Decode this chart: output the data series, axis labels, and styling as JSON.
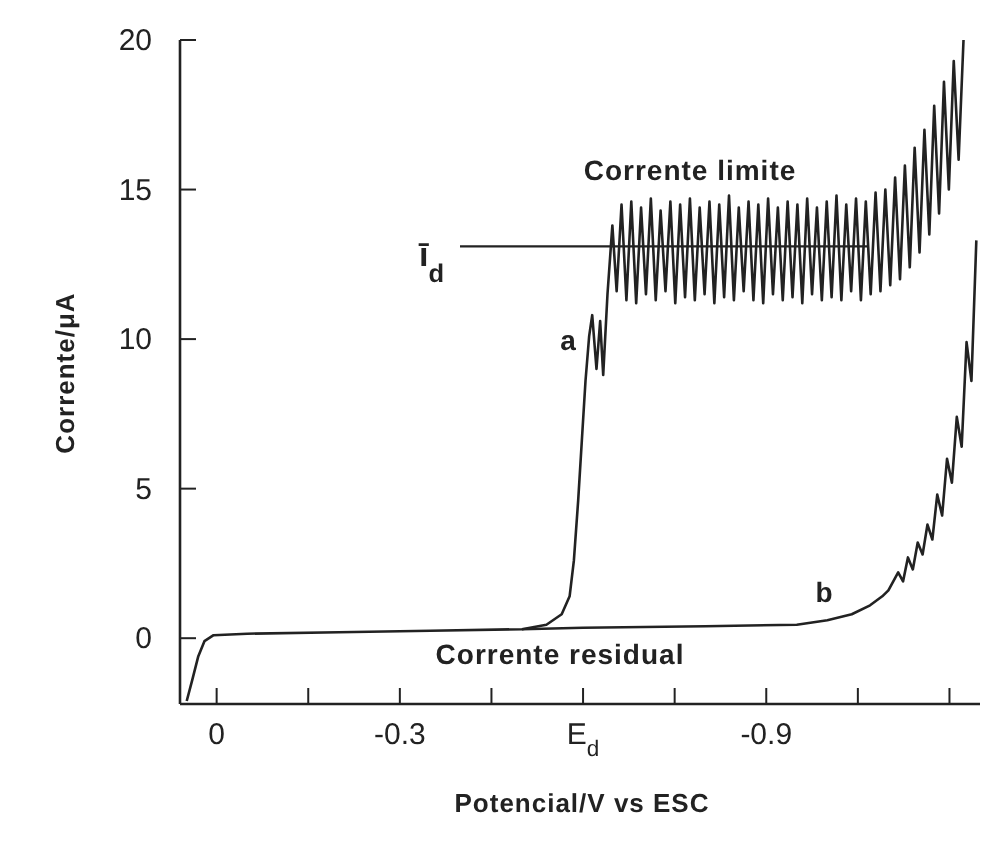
{
  "chart_data": {
    "type": "line",
    "xlabel": "Potencial/V vs ESC",
    "ylabel": "Corrente/μA",
    "xlim": [
      0.06,
      -1.25
    ],
    "ylim": [
      -2.2,
      20
    ],
    "xticks": [
      0,
      {
        "value": -0.15,
        "label": null
      },
      -0.3,
      {
        "value": -0.45,
        "label": null
      },
      {
        "value": -0.6,
        "label": "E$_{d}$"
      },
      {
        "value": -0.75,
        "label": null
      },
      -0.9,
      {
        "value": -1.05,
        "label": null
      },
      {
        "value": -1.2,
        "label": null
      }
    ],
    "yticks": [
      0,
      5,
      10,
      15,
      20
    ],
    "grid": false,
    "legend": false,
    "marker": "none",
    "line_style": "solid",
    "series": [
      {
        "name": "a",
        "color": "#222222",
        "x": [
          0.049,
          0.04,
          0.03,
          0.02,
          0.005,
          -0.05,
          -0.2,
          -0.35,
          -0.5,
          -0.54,
          -0.565,
          -0.578,
          -0.585,
          -0.592,
          -0.598,
          -0.604,
          -0.61,
          -0.615,
          -0.622,
          -0.628,
          -0.633,
          -0.64,
          -0.648,
          -0.655,
          -0.663,
          -0.671,
          -0.679,
          -0.687,
          -0.695,
          -0.703,
          -0.711,
          -0.719,
          -0.727,
          -0.735,
          -0.743,
          -0.751,
          -0.759,
          -0.767,
          -0.775,
          -0.783,
          -0.791,
          -0.799,
          -0.807,
          -0.815,
          -0.823,
          -0.831,
          -0.839,
          -0.847,
          -0.855,
          -0.863,
          -0.871,
          -0.879,
          -0.887,
          -0.895,
          -0.903,
          -0.911,
          -0.919,
          -0.927,
          -0.935,
          -0.943,
          -0.951,
          -0.959,
          -0.967,
          -0.975,
          -0.983,
          -0.991,
          -0.999,
          -1.007,
          -1.015,
          -1.023,
          -1.031,
          -1.039,
          -1.047,
          -1.055,
          -1.063,
          -1.071,
          -1.079,
          -1.087,
          -1.095,
          -1.103,
          -1.111,
          -1.119,
          -1.127,
          -1.135,
          -1.143,
          -1.151,
          -1.159,
          -1.167,
          -1.175,
          -1.183,
          -1.191,
          -1.199,
          -1.207,
          -1.215,
          -1.223
        ],
        "values": [
          -2.1,
          -1.4,
          -0.6,
          -0.1,
          0.1,
          0.15,
          0.2,
          0.25,
          0.3,
          0.45,
          0.8,
          1.4,
          2.6,
          4.6,
          6.6,
          8.6,
          10.1,
          10.8,
          9.0,
          10.6,
          8.8,
          11.5,
          13.8,
          11.6,
          14.5,
          11.3,
          14.6,
          11.2,
          14.4,
          11.5,
          14.7,
          11.3,
          14.3,
          11.6,
          14.6,
          11.2,
          14.5,
          11.4,
          14.7,
          11.3,
          14.4,
          11.5,
          14.6,
          11.2,
          14.5,
          11.4,
          14.8,
          11.3,
          14.4,
          11.6,
          14.6,
          11.3,
          14.5,
          11.2,
          14.7,
          11.5,
          14.4,
          11.3,
          14.6,
          11.4,
          14.5,
          11.2,
          14.7,
          11.5,
          14.4,
          11.3,
          14.6,
          11.4,
          14.8,
          11.3,
          14.5,
          11.6,
          14.7,
          11.3,
          14.6,
          11.5,
          14.9,
          11.6,
          15.0,
          11.8,
          15.4,
          12.0,
          15.8,
          12.4,
          16.4,
          12.9,
          17.0,
          13.5,
          17.8,
          14.2,
          18.6,
          15.0,
          19.3,
          16.0,
          20.0
        ]
      },
      {
        "name": "b",
        "color": "#222222",
        "x": [
          -0.5,
          -0.6,
          -0.8,
          -0.95,
          -1.0,
          -1.04,
          -1.07,
          -1.09,
          -1.1,
          -1.116,
          -1.124,
          -1.132,
          -1.14,
          -1.148,
          -1.156,
          -1.164,
          -1.172,
          -1.18,
          -1.188,
          -1.196,
          -1.204,
          -1.212,
          -1.22,
          -1.228,
          -1.236,
          -1.244
        ],
        "values": [
          0.3,
          0.35,
          0.4,
          0.45,
          0.6,
          0.8,
          1.1,
          1.4,
          1.6,
          2.2,
          1.9,
          2.7,
          2.3,
          3.2,
          2.8,
          3.8,
          3.3,
          4.8,
          4.1,
          6.0,
          5.2,
          7.4,
          6.4,
          9.9,
          8.6,
          13.3
        ]
      }
    ],
    "ref_lines": [
      {
        "axis": "y",
        "value": 13.1,
        "label": "ī$_{d}$",
        "color": "#222222"
      }
    ],
    "annotations": [
      "Corrente limite",
      "Corrente residual"
    ]
  }
}
